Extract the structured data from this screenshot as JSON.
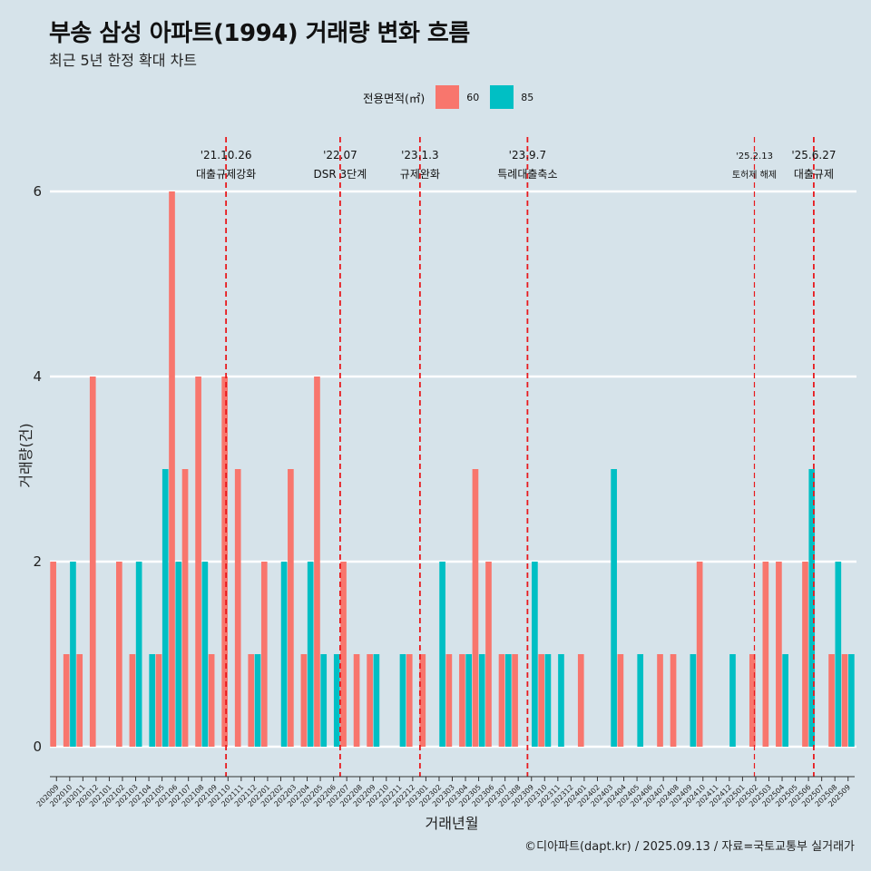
{
  "title": "부송 삼성 아파트(1994) 거래량 변화 흐름",
  "subtitle": "최근 5년 한정 확대 차트",
  "caption": "©디아파트(dapt.kr) / 2025.09.13 / 자료=국토교통부 실거래가",
  "legend": {
    "title": "전용면적(㎡)",
    "items": [
      {
        "label": "60",
        "color": "#F8766D"
      },
      {
        "label": "85",
        "color": "#00BFC4"
      }
    ]
  },
  "chart_data": {
    "type": "bar",
    "title": "부송 삼성 아파트(1994) 거래량 변화 흐름",
    "xlabel": "거래년월",
    "ylabel": "거래량(건)",
    "ylim": [
      0,
      6
    ],
    "yticks": [
      0,
      2,
      4,
      6
    ],
    "categories": [
      "202009",
      "202010",
      "202011",
      "202012",
      "202101",
      "202102",
      "202103",
      "202104",
      "202105",
      "202106",
      "202107",
      "202108",
      "202109",
      "202110",
      "202111",
      "202112",
      "202201",
      "202202",
      "202203",
      "202204",
      "202205",
      "202206",
      "202207",
      "202208",
      "202209",
      "202210",
      "202211",
      "202212",
      "202301",
      "202302",
      "202303",
      "202304",
      "202305",
      "202306",
      "202307",
      "202308",
      "202309",
      "202310",
      "202311",
      "202312",
      "202401",
      "202402",
      "202403",
      "202404",
      "202405",
      "202406",
      "202407",
      "202408",
      "202409",
      "202410",
      "202411",
      "202412",
      "202501",
      "202502",
      "202503",
      "202504",
      "202505",
      "202506",
      "202507",
      "202508",
      "202509"
    ],
    "series": [
      {
        "name": "60",
        "color": "#F8766D",
        "values": [
          2,
          1,
          1,
          4,
          0,
          2,
          1,
          0,
          1,
          6,
          3,
          4,
          1,
          4,
          3,
          1,
          2,
          0,
          3,
          1,
          4,
          0,
          2,
          1,
          1,
          0,
          0,
          1,
          1,
          0,
          1,
          1,
          3,
          2,
          1,
          1,
          0,
          1,
          0,
          0,
          1,
          0,
          0,
          1,
          0,
          0,
          1,
          1,
          0,
          2,
          0,
          0,
          0,
          1,
          2,
          2,
          0,
          2,
          0,
          1,
          1
        ]
      },
      {
        "name": "85",
        "color": "#00BFC4",
        "values": [
          0,
          2,
          0,
          0,
          0,
          0,
          2,
          1,
          3,
          2,
          0,
          2,
          0,
          0,
          0,
          1,
          0,
          2,
          0,
          2,
          1,
          1,
          0,
          0,
          1,
          0,
          1,
          0,
          0,
          2,
          0,
          1,
          1,
          0,
          1,
          0,
          2,
          1,
          1,
          0,
          0,
          0,
          3,
          0,
          1,
          0,
          0,
          0,
          1,
          0,
          0,
          1,
          0,
          0,
          0,
          1,
          0,
          3,
          0,
          2,
          1
        ]
      }
    ],
    "events": [
      {
        "date": "'21.10.26",
        "label": "대출규제강화",
        "category": "202110",
        "offset": 0.35
      },
      {
        "date": "'22.07",
        "label": "DSR 3단계",
        "category": "202207",
        "offset": 0
      },
      {
        "date": "'23.1.3",
        "label": "규제완화",
        "category": "202301",
        "offset": 0.05
      },
      {
        "date": "'23.9.7",
        "label": "특례대출축소",
        "category": "202309",
        "offset": 0.2
      },
      {
        "date": "'25.2.13",
        "label": "토허제 해제",
        "category": "202502",
        "offset": 0.4,
        "small": true
      },
      {
        "date": "'25.6.27",
        "label": "대출규제",
        "category": "202506",
        "offset": 0.9
      }
    ]
  }
}
